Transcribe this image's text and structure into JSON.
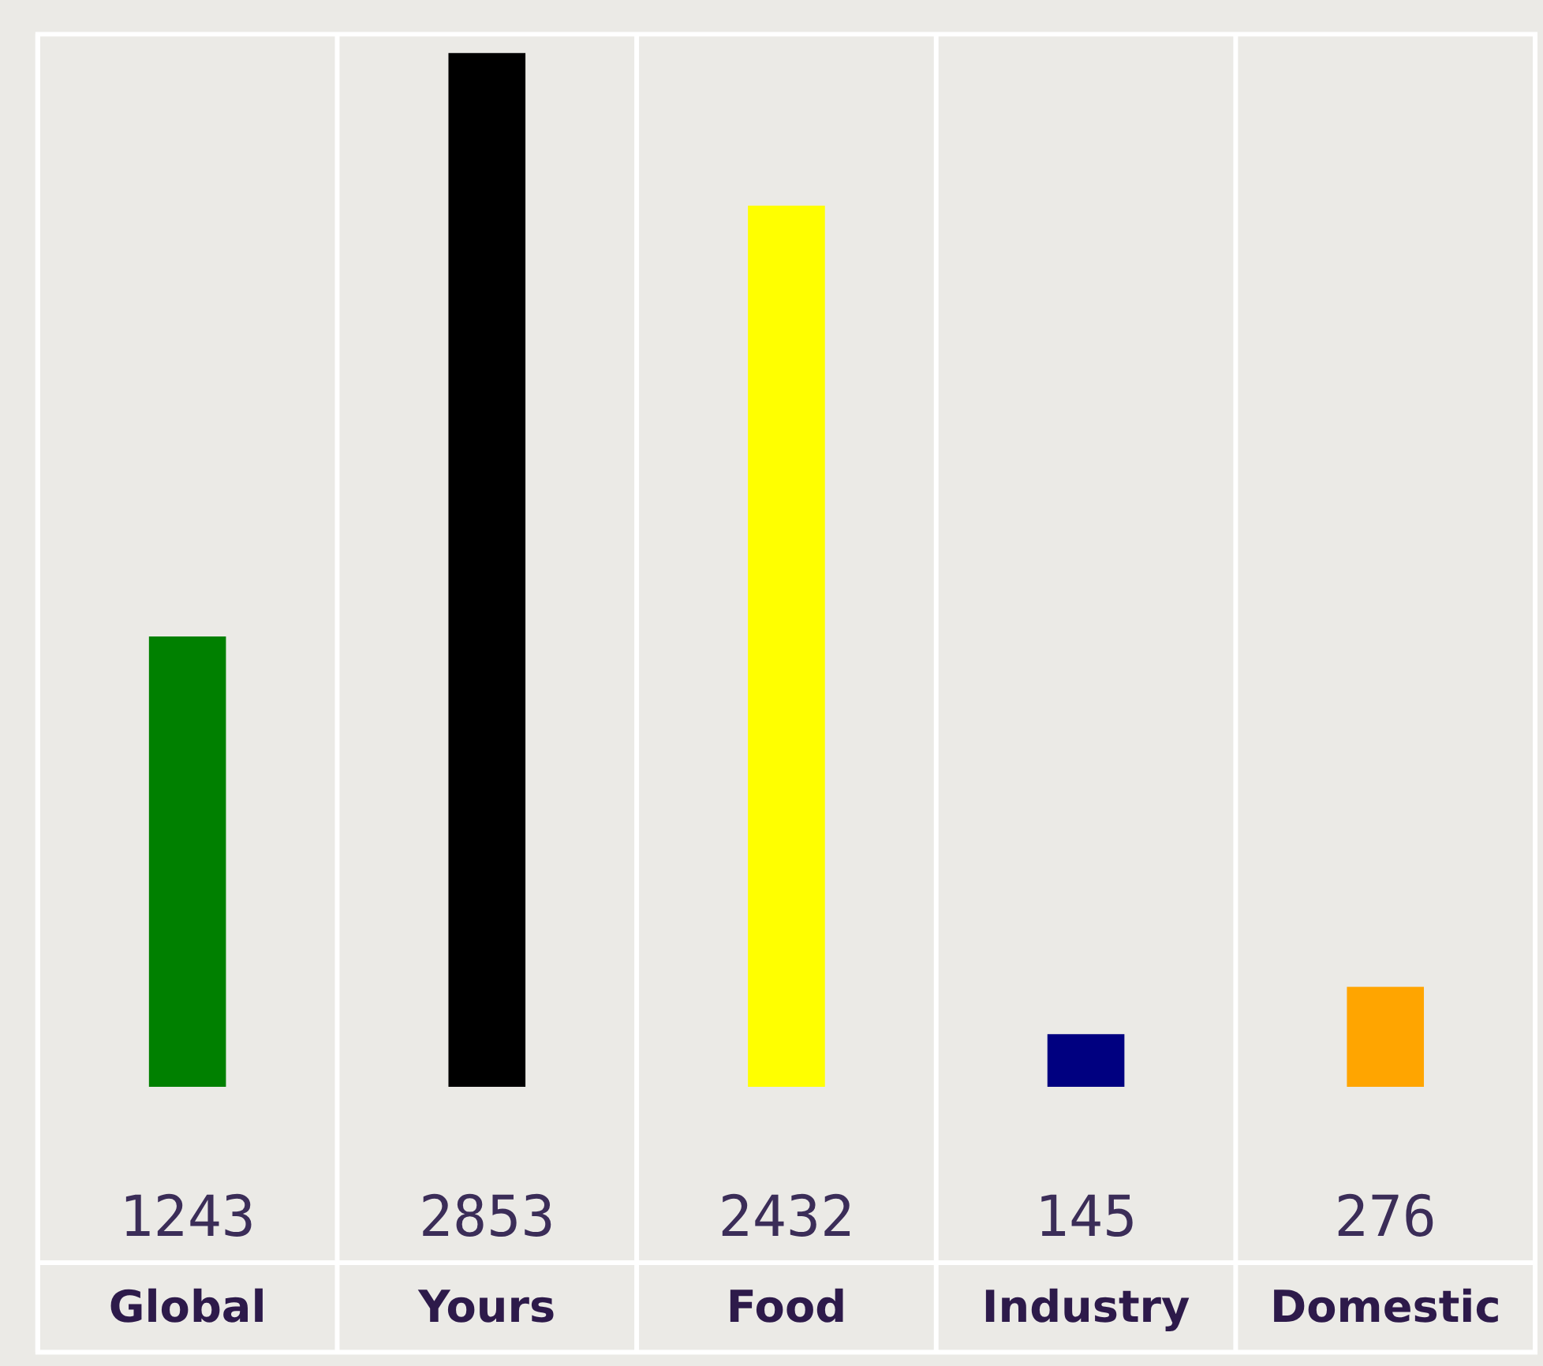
{
  "chart_data": {
    "type": "bar",
    "categories": [
      "Global",
      "Yours",
      "Food",
      "Industry",
      "Domestic"
    ],
    "values": [
      1243,
      2853,
      2432,
      145,
      276
    ],
    "colors": [
      "#008000",
      "#000000",
      "#ffff00",
      "#000080",
      "#ffa500"
    ],
    "data_labels": true,
    "grid": "x",
    "tick_labels": "x"
  }
}
